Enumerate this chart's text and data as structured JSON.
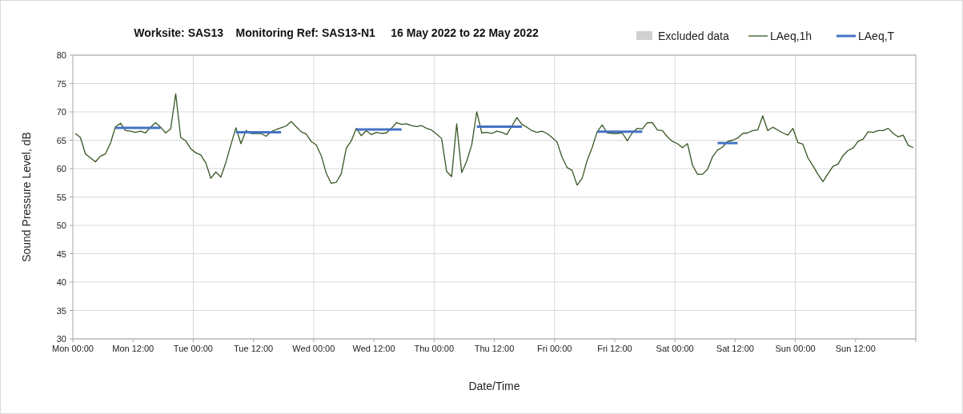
{
  "chart_data": {
    "type": "line",
    "title": "Worksite: SAS13    Monitoring Ref: SAS13-N1     16 May 2022 to 22 May 2022",
    "xlabel": "Date/Time",
    "ylabel": "Sound Pressure Level, dB",
    "xlim": [
      "2022-05-16T00:00",
      "2022-05-23T00:00"
    ],
    "ylim": [
      30,
      80
    ],
    "xticks": [
      {
        "value": "2022-05-16T00:00",
        "label": "Mon 00:00"
      },
      {
        "value": "2022-05-16T12:00",
        "label": "Mon 12:00"
      },
      {
        "value": "2022-05-17T00:00",
        "label": "Tue 00:00"
      },
      {
        "value": "2022-05-17T12:00",
        "label": "Tue 12:00"
      },
      {
        "value": "2022-05-18T00:00",
        "label": "Wed 00:00"
      },
      {
        "value": "2022-05-18T12:00",
        "label": "Wed 12:00"
      },
      {
        "value": "2022-05-19T00:00",
        "label": "Thu 00:00"
      },
      {
        "value": "2022-05-19T12:00",
        "label": "Thu 12:00"
      },
      {
        "value": "2022-05-20T00:00",
        "label": "Fri 00:00"
      },
      {
        "value": "2022-05-20T12:00",
        "label": "Fri 12:00"
      },
      {
        "value": "2022-05-21T00:00",
        "label": "Sat 00:00"
      },
      {
        "value": "2022-05-21T12:00",
        "label": "Sat 12:00"
      },
      {
        "value": "2022-05-22T00:00",
        "label": "Sun 00:00"
      },
      {
        "value": "2022-05-22T12:00",
        "label": "Sun 12:00"
      },
      {
        "value": "2022-05-23T00:00",
        "label": null
      }
    ],
    "yticks": [
      30,
      35,
      40,
      45,
      50,
      55,
      60,
      65,
      70,
      75,
      80
    ],
    "grid": true,
    "legend": "top right",
    "series": [
      {
        "name": "Excluded data",
        "type": "bar",
        "color": "#d0d0d0"
      },
      {
        "name": "LAeq,1h",
        "color": "#375623",
        "x": [
          "2022-05-16T00:30",
          "2022-05-16T01:30",
          "2022-05-16T02:30",
          "2022-05-16T03:30",
          "2022-05-16T04:30",
          "2022-05-16T05:30",
          "2022-05-16T06:30",
          "2022-05-16T07:30",
          "2022-05-16T08:30",
          "2022-05-16T09:30",
          "2022-05-16T10:30",
          "2022-05-16T11:30",
          "2022-05-16T12:30",
          "2022-05-16T13:30",
          "2022-05-16T14:30",
          "2022-05-16T15:30",
          "2022-05-16T16:30",
          "2022-05-16T17:30",
          "2022-05-16T18:30",
          "2022-05-16T19:30",
          "2022-05-16T20:30",
          "2022-05-16T21:30",
          "2022-05-16T22:30",
          "2022-05-16T23:30",
          "2022-05-17T00:30",
          "2022-05-17T01:30",
          "2022-05-17T02:30",
          "2022-05-17T03:30",
          "2022-05-17T04:30",
          "2022-05-17T05:30",
          "2022-05-17T06:30",
          "2022-05-17T07:30",
          "2022-05-17T08:30",
          "2022-05-17T09:30",
          "2022-05-17T10:30",
          "2022-05-17T11:30",
          "2022-05-17T12:30",
          "2022-05-17T13:30",
          "2022-05-17T14:30",
          "2022-05-17T15:30",
          "2022-05-17T16:30",
          "2022-05-17T17:30",
          "2022-05-17T18:30",
          "2022-05-17T19:30",
          "2022-05-17T20:30",
          "2022-05-17T21:30",
          "2022-05-17T22:30",
          "2022-05-17T23:30",
          "2022-05-18T00:30",
          "2022-05-18T01:30",
          "2022-05-18T02:30",
          "2022-05-18T03:30",
          "2022-05-18T04:30",
          "2022-05-18T05:30",
          "2022-05-18T06:30",
          "2022-05-18T07:30",
          "2022-05-18T08:30",
          "2022-05-18T09:30",
          "2022-05-18T10:30",
          "2022-05-18T11:30",
          "2022-05-18T12:30",
          "2022-05-18T13:30",
          "2022-05-18T14:30",
          "2022-05-18T15:30",
          "2022-05-18T16:30",
          "2022-05-18T17:30",
          "2022-05-18T18:30",
          "2022-05-18T19:30",
          "2022-05-18T20:30",
          "2022-05-18T21:30",
          "2022-05-18T22:30",
          "2022-05-18T23:30",
          "2022-05-19T00:30",
          "2022-05-19T01:30",
          "2022-05-19T02:30",
          "2022-05-19T03:30",
          "2022-05-19T04:30",
          "2022-05-19T05:30",
          "2022-05-19T06:30",
          "2022-05-19T07:30",
          "2022-05-19T08:30",
          "2022-05-19T09:30",
          "2022-05-19T10:30",
          "2022-05-19T11:30",
          "2022-05-19T12:30",
          "2022-05-19T13:30",
          "2022-05-19T14:30",
          "2022-05-19T15:30",
          "2022-05-19T16:30",
          "2022-05-19T17:30",
          "2022-05-19T18:30",
          "2022-05-19T19:30",
          "2022-05-19T20:30",
          "2022-05-19T21:30",
          "2022-05-19T22:30",
          "2022-05-19T23:30",
          "2022-05-20T00:30",
          "2022-05-20T01:30",
          "2022-05-20T02:30",
          "2022-05-20T03:30",
          "2022-05-20T04:30",
          "2022-05-20T05:30",
          "2022-05-20T06:30",
          "2022-05-20T07:30",
          "2022-05-20T08:30",
          "2022-05-20T09:30",
          "2022-05-20T10:30",
          "2022-05-20T11:30",
          "2022-05-20T12:30",
          "2022-05-20T13:30",
          "2022-05-20T14:30",
          "2022-05-20T15:30",
          "2022-05-20T16:30",
          "2022-05-20T17:30",
          "2022-05-20T18:30",
          "2022-05-20T19:30",
          "2022-05-20T20:30",
          "2022-05-20T21:30",
          "2022-05-20T22:30",
          "2022-05-20T23:30",
          "2022-05-21T00:30",
          "2022-05-21T01:30",
          "2022-05-21T02:30",
          "2022-05-21T03:30",
          "2022-05-21T04:30",
          "2022-05-21T05:30",
          "2022-05-21T06:30",
          "2022-05-21T07:30",
          "2022-05-21T08:30",
          "2022-05-21T09:30",
          "2022-05-21T10:30",
          "2022-05-21T11:30",
          "2022-05-21T12:30",
          "2022-05-21T13:30",
          "2022-05-21T14:30",
          "2022-05-21T15:30",
          "2022-05-21T16:30",
          "2022-05-21T17:30",
          "2022-05-21T18:30",
          "2022-05-21T19:30",
          "2022-05-21T20:30",
          "2022-05-21T21:30",
          "2022-05-21T22:30",
          "2022-05-21T23:30",
          "2022-05-22T00:30",
          "2022-05-22T01:30",
          "2022-05-22T02:30",
          "2022-05-22T03:30",
          "2022-05-22T04:30",
          "2022-05-22T05:30",
          "2022-05-22T06:30",
          "2022-05-22T07:30",
          "2022-05-22T08:30",
          "2022-05-22T09:30",
          "2022-05-22T10:30",
          "2022-05-22T11:30",
          "2022-05-22T12:30",
          "2022-05-22T13:30",
          "2022-05-22T14:30",
          "2022-05-22T15:30",
          "2022-05-22T16:30",
          "2022-05-22T17:30",
          "2022-05-22T18:30",
          "2022-05-22T19:30",
          "2022-05-22T20:30",
          "2022-05-22T21:30",
          "2022-05-22T22:30",
          "2022-05-22T23:30"
        ],
        "values": [
          66.2,
          65.5,
          62.6,
          61.9,
          61.2,
          62.2,
          62.6,
          64.5,
          67.4,
          68.0,
          66.7,
          66.6,
          66.4,
          66.6,
          66.3,
          67.3,
          68.1,
          67.3,
          66.3,
          67.0,
          73.2,
          65.5,
          64.9,
          63.5,
          62.8,
          62.4,
          61.0,
          58.3,
          59.4,
          58.5,
          61.1,
          64.2,
          67.2,
          64.4,
          66.7,
          66.2,
          66.2,
          66.2,
          65.7,
          66.5,
          66.9,
          67.2,
          67.5,
          68.3,
          67.4,
          66.5,
          66.1,
          64.8,
          64.2,
          62.3,
          59.2,
          57.4,
          57.6,
          59.1,
          63.6,
          64.9,
          67.1,
          65.8,
          66.7,
          66.0,
          66.4,
          66.2,
          66.3,
          67.1,
          68.1,
          67.8,
          67.9,
          67.6,
          67.4,
          67.6,
          67.1,
          66.8,
          66.1,
          65.3,
          59.5,
          58.6,
          67.9,
          59.3,
          61.3,
          64.2,
          70.0,
          66.3,
          66.4,
          66.2,
          66.6,
          66.4,
          66.0,
          67.5,
          69.0,
          67.8,
          67.3,
          66.7,
          66.4,
          66.6,
          66.2,
          65.5,
          64.7,
          62.0,
          60.2,
          59.7,
          57.1,
          58.3,
          61.4,
          63.7,
          66.5,
          67.7,
          66.3,
          66.2,
          66.2,
          66.3,
          64.9,
          66.3,
          67.1,
          67.0,
          68.1,
          68.1,
          66.8,
          66.7,
          65.6,
          64.8,
          64.4,
          63.7,
          64.4,
          60.6,
          59.0,
          59.0,
          59.9,
          62.1,
          63.3,
          63.8,
          64.8,
          65.0,
          65.4,
          66.2,
          66.3,
          66.7,
          66.8,
          69.3,
          66.7,
          67.3,
          66.8,
          66.3,
          65.9,
          67.1,
          64.6,
          64.3,
          61.9,
          60.5,
          59.0,
          57.7,
          59.1,
          60.4,
          60.8,
          62.3,
          63.2,
          63.6,
          64.8,
          65.2,
          66.5,
          66.4,
          66.7,
          66.7,
          67.1,
          66.2,
          65.6,
          65.9,
          64.1,
          63.7
        ]
      },
      {
        "name": "LAeq,T",
        "color": "#4472c4",
        "x": [
          "2022-05-16T08:30",
          "2022-05-16T17:30",
          "2022-05-17T01:00",
          "2022-05-17T08:30",
          "2022-05-17T17:30",
          "2022-05-18T01:00",
          "2022-05-18T08:30",
          "2022-05-18T17:30",
          "2022-05-19T01:00",
          "2022-05-19T08:30",
          "2022-05-19T17:30",
          "2022-05-20T01:00",
          "2022-05-20T08:30",
          "2022-05-20T17:30",
          "2022-05-21T01:00",
          "2022-05-21T08:30",
          "2022-05-21T12:30"
        ],
        "values": [
          67.2,
          67.2,
          null,
          66.4,
          66.4,
          null,
          66.9,
          66.9,
          null,
          67.4,
          67.4,
          null,
          66.5,
          66.5,
          null,
          64.5,
          64.5
        ]
      }
    ]
  }
}
